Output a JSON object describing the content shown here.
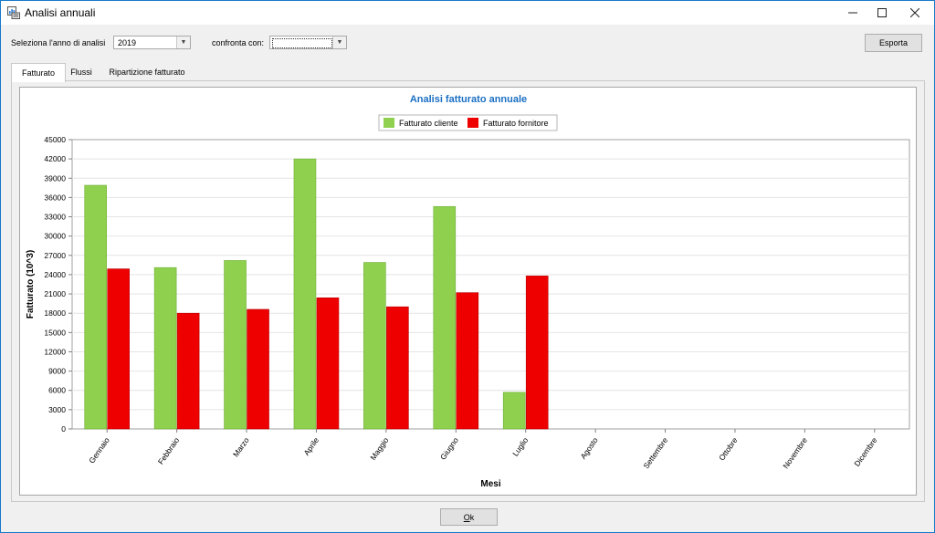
{
  "window": {
    "title": "Analisi annuali",
    "icons": {
      "app": "chart-app-icon",
      "minimize": "minimize-icon",
      "maximize": "maximize-icon",
      "close": "close-icon"
    }
  },
  "toolbar": {
    "year_label": "Seleziona l'anno di analisi",
    "year_value": "2019",
    "compare_label": "confronta con:",
    "compare_value": "",
    "export_label": "Esporta"
  },
  "tabs": [
    {
      "label": "Fatturato",
      "active": true
    },
    {
      "label": "Flussi",
      "active": false
    },
    {
      "label": "Ripartizione fatturato",
      "active": false
    }
  ],
  "footer": {
    "ok_label": "Ok"
  },
  "colors": {
    "series1": "#8fd14f",
    "series2": "#ee0000",
    "title": "#1a6fc4",
    "grid": "#e4e4e4"
  },
  "chart_data": {
    "type": "bar",
    "title": "Analisi fatturato annuale",
    "xlabel": "Mesi",
    "ylabel": "Fatturato (10^3)",
    "ylim": [
      0,
      45000
    ],
    "yticks": [
      0,
      3000,
      6000,
      9000,
      12000,
      15000,
      18000,
      21000,
      24000,
      27000,
      30000,
      33000,
      36000,
      39000,
      42000,
      45000
    ],
    "grid": true,
    "legend": "top-center",
    "categories": [
      "Gennaio",
      "Febbraio",
      "Marzo",
      "Aprile",
      "Maggio",
      "Giugno",
      "Luglio",
      "Agosto",
      "Settembre",
      "Ottobre",
      "Novembre",
      "Dicembre"
    ],
    "series": [
      {
        "name": "Fatturato cliente",
        "values": [
          37900,
          25100,
          26200,
          42000,
          25900,
          34600,
          5700,
          null,
          null,
          null,
          null,
          null
        ]
      },
      {
        "name": "Fatturato fornitore",
        "values": [
          24900,
          18000,
          18600,
          20400,
          19000,
          21200,
          23800,
          null,
          null,
          null,
          null,
          null
        ]
      }
    ]
  }
}
